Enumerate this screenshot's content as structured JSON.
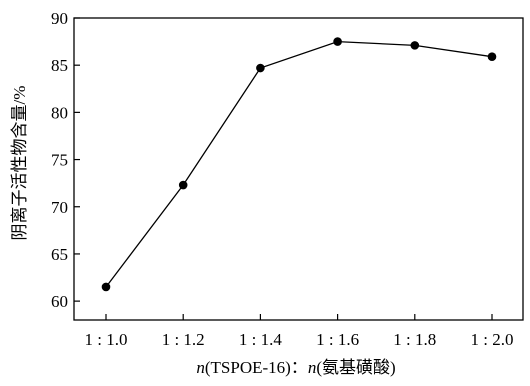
{
  "chart_data": {
    "type": "line",
    "title": "",
    "categories": [
      "1 : 1.0",
      "1 : 1.2",
      "1 : 1.4",
      "1 : 1.6",
      "1 : 1.8",
      "1 : 2.0"
    ],
    "series": [
      {
        "values": [
          61.5,
          72.3,
          84.7,
          87.5,
          87.1,
          85.9
        ]
      }
    ],
    "xlabel_parts": {
      "n1": "n",
      "mid": "(TSPOE-16)：",
      "n2": "n",
      "end": "(氨基磺酸)"
    },
    "ylabel": "阴离子活性物含量/%",
    "ylim": [
      58,
      90
    ],
    "yticks": [
      60,
      65,
      70,
      75,
      80,
      85,
      90
    ],
    "grid": false,
    "legend": "none",
    "colors": {
      "line": "#000000",
      "marker": "#000000",
      "axis": "#000000"
    }
  }
}
